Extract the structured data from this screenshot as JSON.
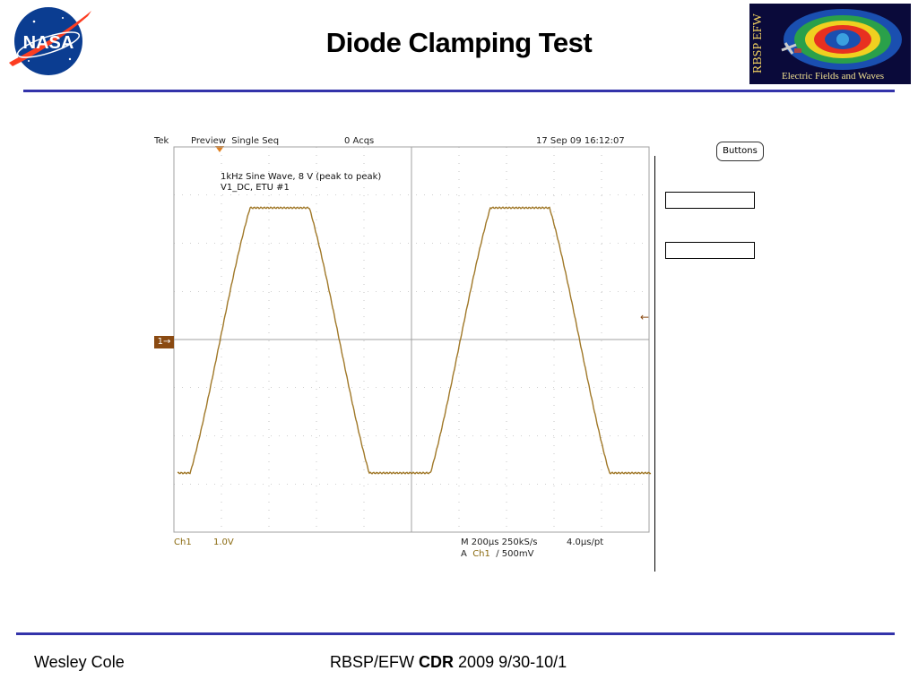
{
  "slide": {
    "title": "Diode Clamping Test"
  },
  "logos": {
    "nasa_text": "NASA",
    "rbsp_vertical": "RBSP EFW",
    "rbsp_caption": "Electric Fields and Waves"
  },
  "scope": {
    "status": {
      "brand": "Tek",
      "mode": "Preview  Single Seq",
      "acquisitions": "0 Acqs",
      "timestamp": "17 Sep 09 16:12:07"
    },
    "annotation": {
      "line1": "1kHz Sine Wave, 8 V (peak to peak)",
      "line2": "V1_DC, ETU #1"
    },
    "channel_marker": "1→",
    "readout": {
      "channel": "Ch1",
      "vertical_scale": "1.0V",
      "timebase": "M 200µs 250kS/s",
      "record": "4.0µs/pt",
      "trigger_prefix": "A",
      "trigger_channel": "Ch1",
      "trigger_level": "∕ 500mV"
    },
    "trace_color": "#a07828",
    "grid_color": "#a0a0a0"
  },
  "panel": {
    "buttons_label": "Buttons"
  },
  "footer": {
    "author": "Wesley Cole",
    "project": "RBSP/EFW",
    "review": "CDR",
    "dates": "2009 9/30-10/1"
  },
  "colors": {
    "rule": "#3333aa",
    "channel_marker_bg": "#8a4a12",
    "trigger_marker": "#e08020"
  }
}
